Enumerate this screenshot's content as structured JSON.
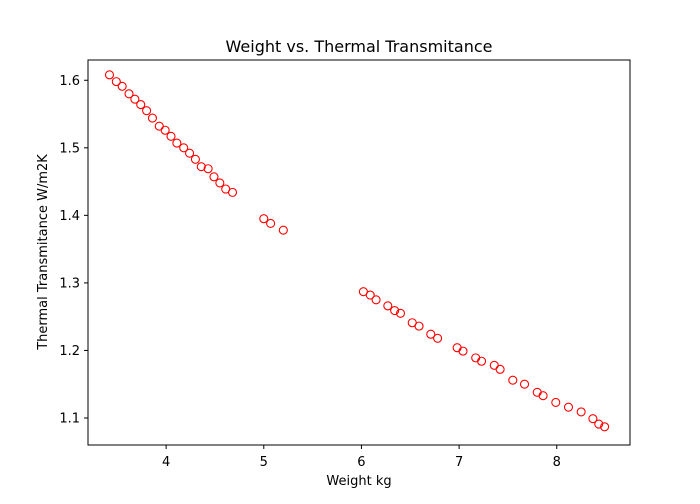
{
  "chart_data": {
    "type": "scatter",
    "title": "Weight vs. Thermal Transmitance",
    "xlabel": "Weight kg",
    "ylabel": "Thermal Transmitance W/m2K",
    "xlim": [
      3.2,
      8.75
    ],
    "ylim": [
      1.06,
      1.63
    ],
    "xticks": [
      4,
      5,
      6,
      7,
      8
    ],
    "xtick_labels": [
      "4",
      "5",
      "6",
      "7",
      "8"
    ],
    "yticks": [
      1.1,
      1.2,
      1.3,
      1.4,
      1.5,
      1.6
    ],
    "ytick_labels": [
      "1.1",
      "1.2",
      "1.3",
      "1.4",
      "1.5",
      "1.6"
    ],
    "grid": false,
    "marker": "open-circle",
    "marker_color": "#ff0000",
    "points": [
      {
        "x": 3.42,
        "y": 1.608
      },
      {
        "x": 3.49,
        "y": 1.598
      },
      {
        "x": 3.55,
        "y": 1.591
      },
      {
        "x": 3.62,
        "y": 1.58
      },
      {
        "x": 3.68,
        "y": 1.572
      },
      {
        "x": 3.74,
        "y": 1.564
      },
      {
        "x": 3.8,
        "y": 1.555
      },
      {
        "x": 3.86,
        "y": 1.544
      },
      {
        "x": 3.93,
        "y": 1.532
      },
      {
        "x": 3.99,
        "y": 1.526
      },
      {
        "x": 4.05,
        "y": 1.517
      },
      {
        "x": 4.11,
        "y": 1.507
      },
      {
        "x": 4.18,
        "y": 1.5
      },
      {
        "x": 4.24,
        "y": 1.492
      },
      {
        "x": 4.3,
        "y": 1.483
      },
      {
        "x": 4.36,
        "y": 1.472
      },
      {
        "x": 4.43,
        "y": 1.469
      },
      {
        "x": 4.49,
        "y": 1.457
      },
      {
        "x": 4.55,
        "y": 1.448
      },
      {
        "x": 4.61,
        "y": 1.439
      },
      {
        "x": 4.68,
        "y": 1.434
      },
      {
        "x": 5.0,
        "y": 1.395
      },
      {
        "x": 5.07,
        "y": 1.388
      },
      {
        "x": 5.2,
        "y": 1.378
      },
      {
        "x": 6.02,
        "y": 1.287
      },
      {
        "x": 6.09,
        "y": 1.282
      },
      {
        "x": 6.15,
        "y": 1.275
      },
      {
        "x": 6.27,
        "y": 1.266
      },
      {
        "x": 6.34,
        "y": 1.259
      },
      {
        "x": 6.4,
        "y": 1.255
      },
      {
        "x": 6.52,
        "y": 1.241
      },
      {
        "x": 6.59,
        "y": 1.236
      },
      {
        "x": 6.71,
        "y": 1.224
      },
      {
        "x": 6.78,
        "y": 1.218
      },
      {
        "x": 6.98,
        "y": 1.204
      },
      {
        "x": 7.04,
        "y": 1.199
      },
      {
        "x": 7.17,
        "y": 1.189
      },
      {
        "x": 7.23,
        "y": 1.184
      },
      {
        "x": 7.36,
        "y": 1.178
      },
      {
        "x": 7.42,
        "y": 1.172
      },
      {
        "x": 7.55,
        "y": 1.156
      },
      {
        "x": 7.67,
        "y": 1.15
      },
      {
        "x": 7.8,
        "y": 1.138
      },
      {
        "x": 7.86,
        "y": 1.133
      },
      {
        "x": 7.99,
        "y": 1.123
      },
      {
        "x": 8.12,
        "y": 1.116
      },
      {
        "x": 8.25,
        "y": 1.109
      },
      {
        "x": 8.37,
        "y": 1.099
      },
      {
        "x": 8.43,
        "y": 1.091
      },
      {
        "x": 8.49,
        "y": 1.087
      }
    ]
  }
}
